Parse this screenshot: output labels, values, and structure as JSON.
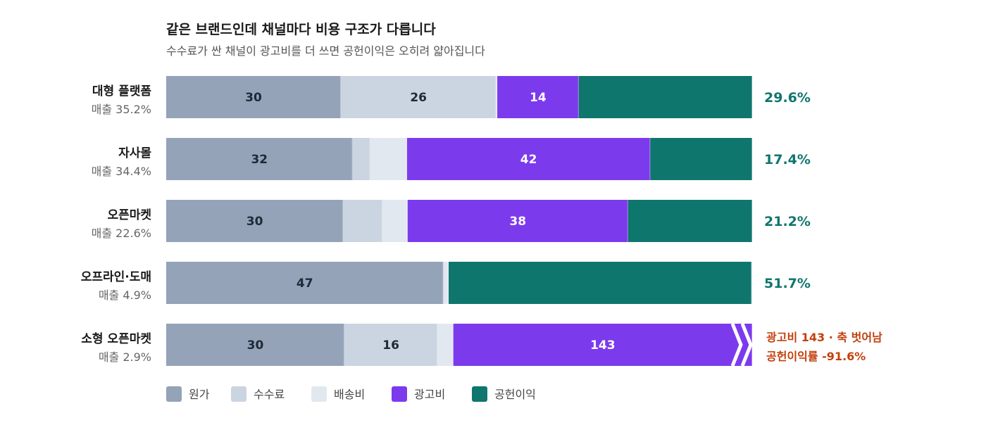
{
  "chart_data": {
    "type": "bar",
    "orientation": "horizontal",
    "stacked": true,
    "normalized": true,
    "title": "같은 브랜드인데 채널마다 비용 구조가 다릅니다",
    "subtitle": "수수료가 싼 채널이 광고비를 더 쓰면 공헌이익은 오히려 얇아집니다",
    "categories": [
      "대형 플랫폼",
      "자사몰",
      "오픈마켓",
      "오프라인·도매",
      "소형 오픈마켓"
    ],
    "share_labels": [
      "매출 35.2%",
      "매출 34.4%",
      "매출 22.6%",
      "매출 4.9%",
      "매출 2.9%"
    ],
    "xlim": [
      0,
      100
    ],
    "series": [
      {
        "name": "원가",
        "color": "#94a3b8",
        "text_color": "#1f2937",
        "values": [
          29.8,
          31.8,
          30.2,
          47.3,
          30.4
        ],
        "labels": [
          "30",
          "32",
          "30",
          "47",
          "30"
        ]
      },
      {
        "name": "수수료",
        "color": "#cbd5e1",
        "text_color": "#1f2937",
        "values": [
          26.5,
          3.0,
          6.7,
          0,
          15.9
        ],
        "labels": [
          "26",
          "",
          "",
          "",
          "16"
        ]
      },
      {
        "name": "배송비",
        "color": "#e2e8f0",
        "text_color": "#1f2937",
        "values": [
          0.2,
          6.3,
          4.3,
          0.9,
          2.7
        ],
        "labels": [
          "",
          "",
          "",
          "",
          ""
        ]
      },
      {
        "name": "광고비",
        "color": "#7c3aed",
        "text_color": "#ffffff",
        "values": [
          13.9,
          41.5,
          37.6,
          0,
          143
        ],
        "labels": [
          "14",
          "42",
          "38",
          "",
          "143"
        ]
      },
      {
        "name": "공헌이익",
        "color": "#0f766e",
        "text_color": "#ffffff",
        "values": [
          29.6,
          17.4,
          21.2,
          51.7,
          -91.6
        ],
        "labels": [
          "",
          "",
          "",
          "",
          ""
        ]
      }
    ],
    "margin_labels": [
      "29.6%",
      "17.4%",
      "21.2%",
      "51.7%",
      ""
    ],
    "margin_color": "#0f766e",
    "overflow": {
      "category_index": 4,
      "note_lines": [
        "광고비 143 · 축 벗어남",
        "공헌이익률 -91.6%"
      ],
      "note_color": "#c2410c"
    },
    "legend": {
      "position": "bottom-left",
      "items": [
        "원가",
        "수수료",
        "배송비",
        "광고비",
        "공헌이익"
      ]
    },
    "grid": false
  }
}
